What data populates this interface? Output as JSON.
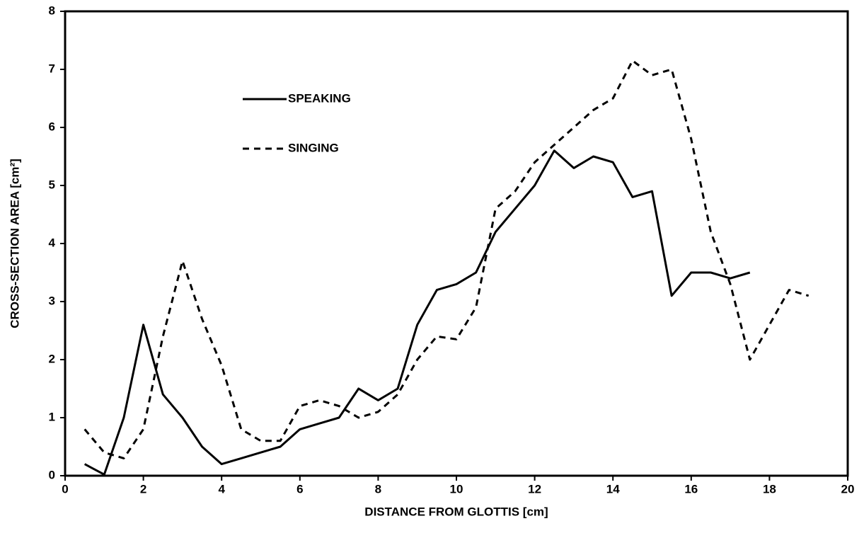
{
  "chart_data": {
    "type": "line",
    "xlabel": "DISTANCE FROM GLOTTIS  [cm]",
    "ylabel": "CROSS-SECTION AREA  [cm²]",
    "xlim": [
      0,
      20
    ],
    "xticks": [
      0,
      2,
      4,
      6,
      8,
      10,
      12,
      14,
      16,
      18,
      20
    ],
    "ylim": [
      0,
      8
    ],
    "yticks": [
      0,
      1,
      2,
      3,
      4,
      5,
      6,
      7,
      8
    ],
    "legend": "upper left",
    "series": [
      {
        "name": "SPEAKING",
        "color": "#000000",
        "line_style": "solid",
        "x": [
          0.5,
          1.0,
          1.5,
          2.0,
          2.5,
          3.0,
          3.5,
          4.0,
          4.5,
          5.0,
          5.5,
          6.0,
          6.5,
          7.0,
          7.5,
          8.0,
          8.5,
          9.0,
          9.5,
          10.0,
          10.5,
          11.0,
          11.5,
          12.0,
          12.5,
          13.0,
          13.5,
          14.0,
          14.5,
          15.0,
          15.5,
          16.0,
          16.5,
          17.0,
          17.5
        ],
        "values": [
          0.2,
          0.02,
          1.0,
          2.6,
          1.4,
          1.0,
          0.5,
          0.2,
          0.3,
          0.4,
          0.5,
          0.8,
          0.9,
          1.0,
          1.5,
          1.3,
          1.5,
          2.6,
          3.2,
          3.3,
          3.5,
          4.2,
          4.6,
          5.0,
          5.6,
          5.3,
          5.5,
          5.4,
          4.8,
          4.9,
          3.1,
          3.5,
          3.5,
          3.4,
          3.5
        ]
      },
      {
        "name": "SINGING",
        "color": "#000000",
        "line_style": "dashed",
        "x": [
          0.5,
          1.0,
          1.5,
          2.0,
          2.5,
          3.0,
          3.5,
          4.0,
          4.5,
          5.0,
          5.5,
          6.0,
          6.5,
          7.0,
          7.5,
          8.0,
          8.5,
          9.0,
          9.5,
          10.0,
          10.5,
          11.0,
          11.5,
          12.0,
          12.5,
          13.0,
          13.5,
          14.0,
          14.5,
          15.0,
          15.5,
          16.0,
          16.5,
          17.0,
          17.5,
          18.0,
          18.5,
          19.0
        ],
        "values": [
          0.8,
          0.4,
          0.3,
          0.8,
          2.4,
          3.7,
          2.7,
          1.9,
          0.8,
          0.6,
          0.6,
          1.2,
          1.3,
          1.2,
          1.0,
          1.1,
          1.4,
          2.0,
          2.4,
          2.35,
          2.9,
          4.6,
          4.9,
          5.4,
          5.7,
          6.0,
          6.3,
          6.5,
          7.15,
          6.9,
          7.0,
          5.8,
          4.2,
          3.3,
          2.0,
          2.6,
          3.2,
          3.1
        ]
      }
    ]
  }
}
